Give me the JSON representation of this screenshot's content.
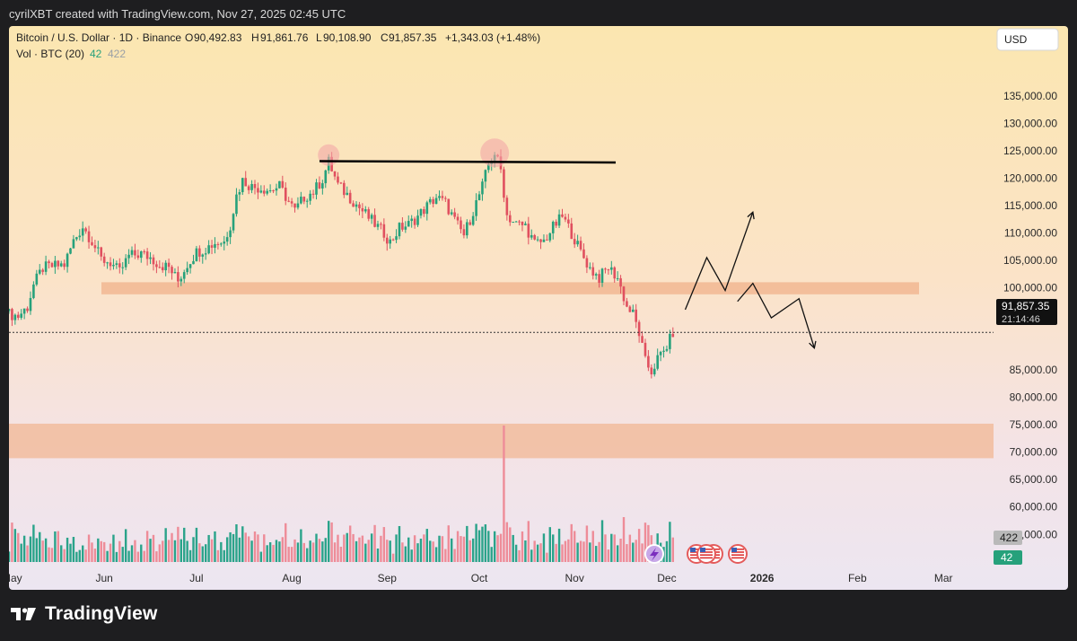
{
  "header": {
    "attribution": "cyrilXBT created with TradingView.com, Nov 27, 2025 02:45 UTC"
  },
  "legend": {
    "symbol": "Bitcoin / U.S. Dollar · 1D · Binance",
    "open_label": "O",
    "open": "90,492.83",
    "high_label": "H",
    "high": "91,861.76",
    "low_label": "L",
    "low": "90,108.90",
    "close_label": "C",
    "close": "91,857.35",
    "change": "+1,343.03 (+1.48%)",
    "volume_label": "Vol · BTC (20)",
    "volume_value": "42",
    "volume_ma": "422"
  },
  "currency_button": "USD",
  "price_tag": {
    "price": "91,857.35",
    "countdown": "21:14:46"
  },
  "volume_tags": {
    "ma": "422",
    "current": "42"
  },
  "footer": {
    "brand": "TradingView"
  },
  "colors": {
    "up": "#26a17b",
    "down": "#e0505f",
    "zone": "#f1b48e",
    "vol_up": "#2aa38a",
    "vol_down": "#ee8c98",
    "resistance": "#000000"
  },
  "chart_data": {
    "type": "candlestick",
    "title": "Bitcoin / U.S. Dollar · 1D · Binance",
    "y_axis": {
      "ticks": [
        135000,
        130000,
        125000,
        120000,
        115000,
        110000,
        105000,
        100000,
        95000,
        90000,
        85000,
        80000,
        75000,
        70000,
        65000,
        60000,
        55000,
        50000,
        45000,
        40000
      ],
      "tick_labels": [
        "135,000.00",
        "130,000.00",
        "125,000.00",
        "120,000.00",
        "115,000.00",
        "110,000.00",
        "105,000.00",
        "100,000.00",
        "95,000.00",
        "",
        "85,000.00",
        "80,000.00",
        "75,000.00",
        "70,000.00",
        "65,000.00",
        "60,000.00",
        "55,000.00",
        "",
        "",
        ""
      ],
      "range": [
        40000,
        138000
      ]
    },
    "x_axis": {
      "labels": [
        "May",
        "Jun",
        "Jul",
        "Aug",
        "Sep",
        "Oct",
        "Nov",
        "Dec",
        "2026",
        "Feb",
        "Mar"
      ],
      "label_start_days": [
        0,
        31,
        61,
        92,
        123,
        153,
        184,
        214,
        245,
        276,
        304
      ],
      "range_days": [
        0,
        340
      ]
    },
    "series_close": [
      [
        0,
        95200
      ],
      [
        3,
        94800
      ],
      [
        6,
        96500
      ],
      [
        8,
        100500
      ],
      [
        11,
        103600
      ],
      [
        14,
        103900
      ],
      [
        18,
        104200
      ],
      [
        21,
        108500
      ],
      [
        24,
        111200
      ],
      [
        27,
        108500
      ],
      [
        30,
        105200
      ],
      [
        33,
        104600
      ],
      [
        36,
        102800
      ],
      [
        39,
        105800
      ],
      [
        43,
        106200
      ],
      [
        46,
        105500
      ],
      [
        49,
        104200
      ],
      [
        52,
        103700
      ],
      [
        55,
        101200
      ],
      [
        58,
        104300
      ],
      [
        61,
        106500
      ],
      [
        64,
        107200
      ],
      [
        67,
        108200
      ],
      [
        70,
        108400
      ],
      [
        72,
        111500
      ],
      [
        74,
        116800
      ],
      [
        76,
        119600
      ],
      [
        79,
        118400
      ],
      [
        82,
        118200
      ],
      [
        85,
        117800
      ],
      [
        88,
        118500
      ],
      [
        91,
        115700
      ],
      [
        93,
        114000
      ],
      [
        96,
        116500
      ],
      [
        99,
        117500
      ],
      [
        102,
        119800
      ],
      [
        104,
        123000
      ],
      [
        107,
        118700
      ],
      [
        110,
        117000
      ],
      [
        113,
        115200
      ],
      [
        116,
        113400
      ],
      [
        119,
        111600
      ],
      [
        122,
        110000
      ],
      [
        124,
        108300
      ],
      [
        127,
        110900
      ],
      [
        130,
        111500
      ],
      [
        133,
        113000
      ],
      [
        136,
        114900
      ],
      [
        139,
        116500
      ],
      [
        142,
        115400
      ],
      [
        145,
        112200
      ],
      [
        148,
        109600
      ],
      [
        151,
        114000
      ],
      [
        154,
        118500
      ],
      [
        156,
        122500
      ],
      [
        158,
        124600
      ],
      [
        160,
        121500
      ],
      [
        162,
        113200
      ],
      [
        165,
        111600
      ],
      [
        168,
        111300
      ],
      [
        171,
        108000
      ],
      [
        174,
        108500
      ],
      [
        177,
        111000
      ],
      [
        180,
        113000
      ],
      [
        183,
        110000
      ],
      [
        186,
        106500
      ],
      [
        189,
        103500
      ],
      [
        192,
        101800
      ],
      [
        195,
        103700
      ],
      [
        198,
        101800
      ],
      [
        201,
        96500
      ],
      [
        203,
        95200
      ],
      [
        205,
        91700
      ],
      [
        207,
        86500
      ],
      [
        209,
        84700
      ],
      [
        211,
        87000
      ],
      [
        213,
        88300
      ],
      [
        215,
        90500
      ],
      [
        216,
        91857
      ]
    ],
    "annotations": {
      "resistance_line_price": 123100,
      "zones": [
        {
          "from": 98800,
          "to": 101000,
          "label": ""
        },
        {
          "from": 68900,
          "to": 75200,
          "label": ""
        }
      ],
      "projection_bullish": [
        [
          220,
          96000
        ],
        [
          227,
          105500
        ],
        [
          233,
          99500
        ],
        [
          242,
          113800
        ]
      ],
      "projection_bearish": [
        [
          237,
          97500
        ],
        [
          242,
          100800
        ],
        [
          248,
          94500
        ],
        [
          257,
          98000
        ],
        [
          262,
          89000
        ]
      ],
      "last_price": 91857.35,
      "event_icons": [
        "us-flag-icon",
        "us-flag-icon",
        "us-flag-icon",
        "us-flag-icon"
      ]
    },
    "volume": {
      "volume_ma20": 422,
      "current": 42,
      "max_bar_event_day": 161
    },
    "grid": false,
    "legend_position": "top-left"
  }
}
